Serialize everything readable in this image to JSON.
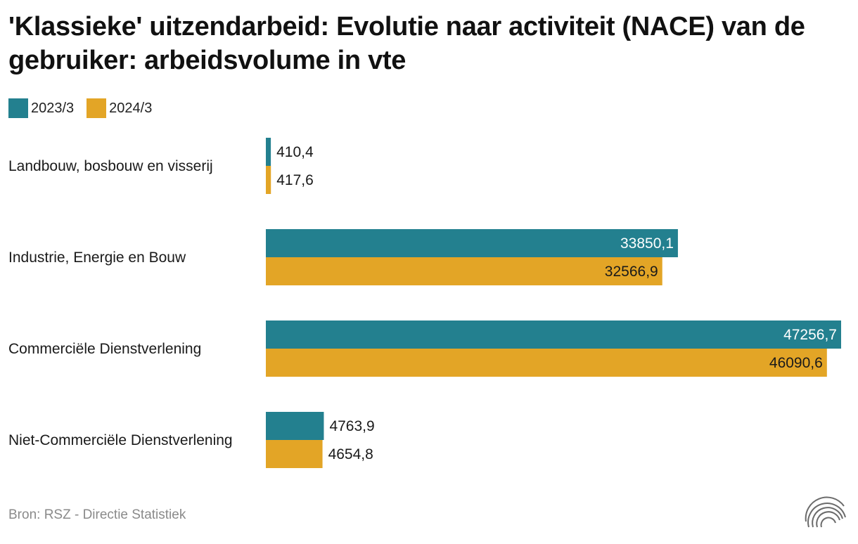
{
  "chart_data": {
    "type": "bar",
    "orientation": "horizontal",
    "title": "'Klassieke' uitzendarbeid: Evolutie naar activiteit (NACE) van de gebruiker: arbeidsvolume in vte",
    "categories": [
      "Landbouw, bosbouw en visserij",
      "Industrie, Energie en Bouw",
      "Commerciële Dienstverlening",
      "Niet-Commerciële Dienstverlening"
    ],
    "series": [
      {
        "name": "2023/3",
        "color": "#23808f",
        "values": [
          410.4,
          33850.1,
          47256.7,
          4763.9
        ],
        "labels": [
          "410,4",
          "33850,1",
          "47256,7",
          "4763,9"
        ]
      },
      {
        "name": "2024/3",
        "color": "#e3a526",
        "values": [
          417.6,
          32566.9,
          46090.6,
          4654.8
        ],
        "labels": [
          "417,6",
          "32566,9",
          "46090,6",
          "4654,8"
        ]
      }
    ],
    "xlim": [
      0,
      47256.7
    ],
    "legend_position": "top-left",
    "grid": false,
    "source": "Bron: RSZ - Directie Statistiek"
  }
}
